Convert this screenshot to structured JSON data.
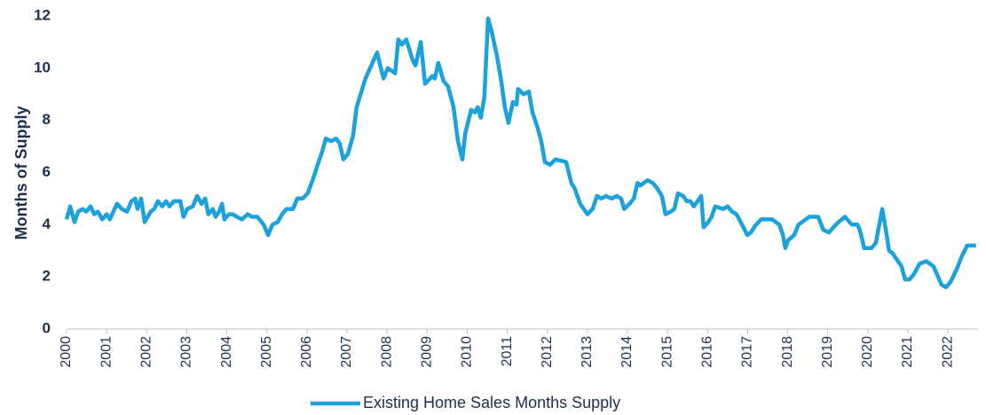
{
  "chart_data": {
    "type": "line",
    "y_label": "Months of Supply",
    "x": [
      2000.0,
      2000.09,
      2000.2,
      2000.29,
      2000.4,
      2000.49,
      2000.6,
      2000.69,
      2000.78,
      2000.89,
      2001.0,
      2001.08,
      2001.17,
      2001.26,
      2001.38,
      2001.51,
      2001.62,
      2001.71,
      2001.77,
      2001.86,
      2001.95,
      2002.1,
      2002.19,
      2002.28,
      2002.39,
      2002.48,
      2002.57,
      2002.68,
      2002.84,
      2002.92,
      2003.01,
      2003.15,
      2003.26,
      2003.37,
      2003.46,
      2003.54,
      2003.65,
      2003.72,
      2003.81,
      2003.88,
      2003.94,
      2004.05,
      2004.14,
      2004.25,
      2004.38,
      2004.52,
      2004.63,
      2004.76,
      2004.92,
      2005.03,
      2005.14,
      2005.27,
      2005.38,
      2005.49,
      2005.65,
      2005.76,
      2005.89,
      2006.02,
      2006.14,
      2006.27,
      2006.38,
      2006.47,
      2006.6,
      2006.73,
      2006.82,
      2006.91,
      2007.02,
      2007.15,
      2007.24,
      2007.46,
      2007.75,
      2007.91,
      2008.02,
      2008.2,
      2008.28,
      2008.37,
      2008.48,
      2008.64,
      2008.71,
      2008.84,
      2008.95,
      2009.13,
      2009.19,
      2009.28,
      2009.41,
      2009.52,
      2009.66,
      2009.77,
      2009.88,
      2009.95,
      2010.1,
      2010.19,
      2010.26,
      2010.34,
      2010.43,
      2010.52,
      2010.61,
      2010.74,
      2010.85,
      2010.94,
      2011.03,
      2011.14,
      2011.23,
      2011.27,
      2011.41,
      2011.54,
      2011.63,
      2011.76,
      2011.85,
      2011.94,
      2012.07,
      2012.2,
      2012.47,
      2012.6,
      2012.68,
      2012.82,
      2013.0,
      2013.13,
      2013.24,
      2013.35,
      2013.46,
      2013.61,
      2013.73,
      2013.84,
      2013.92,
      2014.05,
      2014.16,
      2014.25,
      2014.32,
      2014.5,
      2014.63,
      2014.74,
      2014.86,
      2014.95,
      2015.08,
      2015.17,
      2015.26,
      2015.39,
      2015.48,
      2015.57,
      2015.66,
      2015.84,
      2015.9,
      2016.02,
      2016.1,
      2016.19,
      2016.39,
      2016.5,
      2016.61,
      2016.72,
      2016.86,
      2016.99,
      2017.08,
      2017.21,
      2017.34,
      2017.61,
      2017.79,
      2017.88,
      2017.94,
      2018.01,
      2018.16,
      2018.27,
      2018.54,
      2018.76,
      2018.89,
      2019.03,
      2019.14,
      2019.27,
      2019.43,
      2019.6,
      2019.74,
      2019.8,
      2019.91,
      2020.09,
      2020.2,
      2020.36,
      2020.44,
      2020.53,
      2020.62,
      2020.75,
      2020.84,
      2020.93,
      2021.04,
      2021.15,
      2021.29,
      2021.46,
      2021.64,
      2021.84,
      2021.95,
      2022.06,
      2022.22,
      2022.35,
      2022.48,
      2022.7
    ],
    "series": [
      {
        "name": "Existing Home Sales Months Supply",
        "color": "#1ba1dc",
        "values": [
          4.2,
          4.7,
          4.1,
          4.5,
          4.6,
          4.5,
          4.7,
          4.4,
          4.5,
          4.2,
          4.4,
          4.2,
          4.5,
          4.8,
          4.6,
          4.5,
          4.9,
          5.0,
          4.6,
          5.0,
          4.1,
          4.5,
          4.6,
          4.9,
          4.7,
          4.9,
          4.7,
          4.9,
          4.9,
          4.3,
          4.6,
          4.7,
          5.1,
          4.8,
          5.0,
          4.4,
          4.6,
          4.3,
          4.5,
          4.8,
          4.2,
          4.4,
          4.4,
          4.3,
          4.2,
          4.4,
          4.3,
          4.3,
          4.0,
          3.6,
          4.0,
          4.1,
          4.4,
          4.6,
          4.6,
          5.0,
          5.0,
          5.2,
          5.7,
          6.3,
          6.8,
          7.3,
          7.2,
          7.3,
          7.1,
          6.5,
          6.7,
          7.4,
          8.5,
          9.6,
          10.6,
          9.6,
          10.0,
          9.8,
          11.1,
          10.9,
          11.1,
          10.3,
          10.1,
          11.0,
          9.4,
          9.7,
          9.6,
          10.2,
          9.5,
          9.3,
          8.5,
          7.2,
          6.5,
          7.5,
          8.4,
          8.3,
          8.5,
          8.1,
          8.9,
          11.9,
          11.4,
          10.5,
          9.5,
          8.5,
          7.9,
          8.7,
          8.6,
          9.2,
          9.0,
          9.1,
          8.3,
          7.7,
          7.2,
          6.4,
          6.3,
          6.5,
          6.4,
          5.6,
          5.4,
          4.8,
          4.4,
          4.6,
          5.1,
          5.0,
          5.1,
          5.0,
          5.1,
          5.0,
          4.6,
          4.8,
          5.0,
          5.6,
          5.5,
          5.7,
          5.6,
          5.4,
          5.1,
          4.4,
          4.5,
          4.6,
          5.2,
          5.1,
          4.9,
          4.9,
          4.7,
          5.1,
          3.9,
          4.1,
          4.3,
          4.7,
          4.6,
          4.7,
          4.5,
          4.4,
          4.0,
          3.6,
          3.7,
          4.0,
          4.2,
          4.2,
          4.0,
          3.6,
          3.1,
          3.4,
          3.6,
          4.0,
          4.3,
          4.3,
          3.8,
          3.7,
          3.9,
          4.1,
          4.3,
          4.0,
          4.0,
          3.8,
          3.1,
          3.1,
          3.3,
          4.6,
          3.9,
          3.0,
          2.9,
          2.6,
          2.4,
          1.9,
          1.9,
          2.1,
          2.5,
          2.6,
          2.4,
          1.7,
          1.6,
          1.8,
          2.3,
          2.8,
          3.2,
          3.2
        ]
      }
    ],
    "xlim": [
      2000,
      2022.75
    ],
    "xticks": [
      2000,
      2001,
      2002,
      2003,
      2004,
      2005,
      2006,
      2007,
      2008,
      2009,
      2010,
      2011,
      2012,
      2013,
      2014,
      2015,
      2016,
      2017,
      2018,
      2019,
      2020,
      2021,
      2022
    ],
    "ylim": [
      0,
      12
    ],
    "yticks": [
      0,
      2,
      4,
      6,
      8,
      10,
      12
    ],
    "grid": false,
    "legend": "bottom"
  }
}
